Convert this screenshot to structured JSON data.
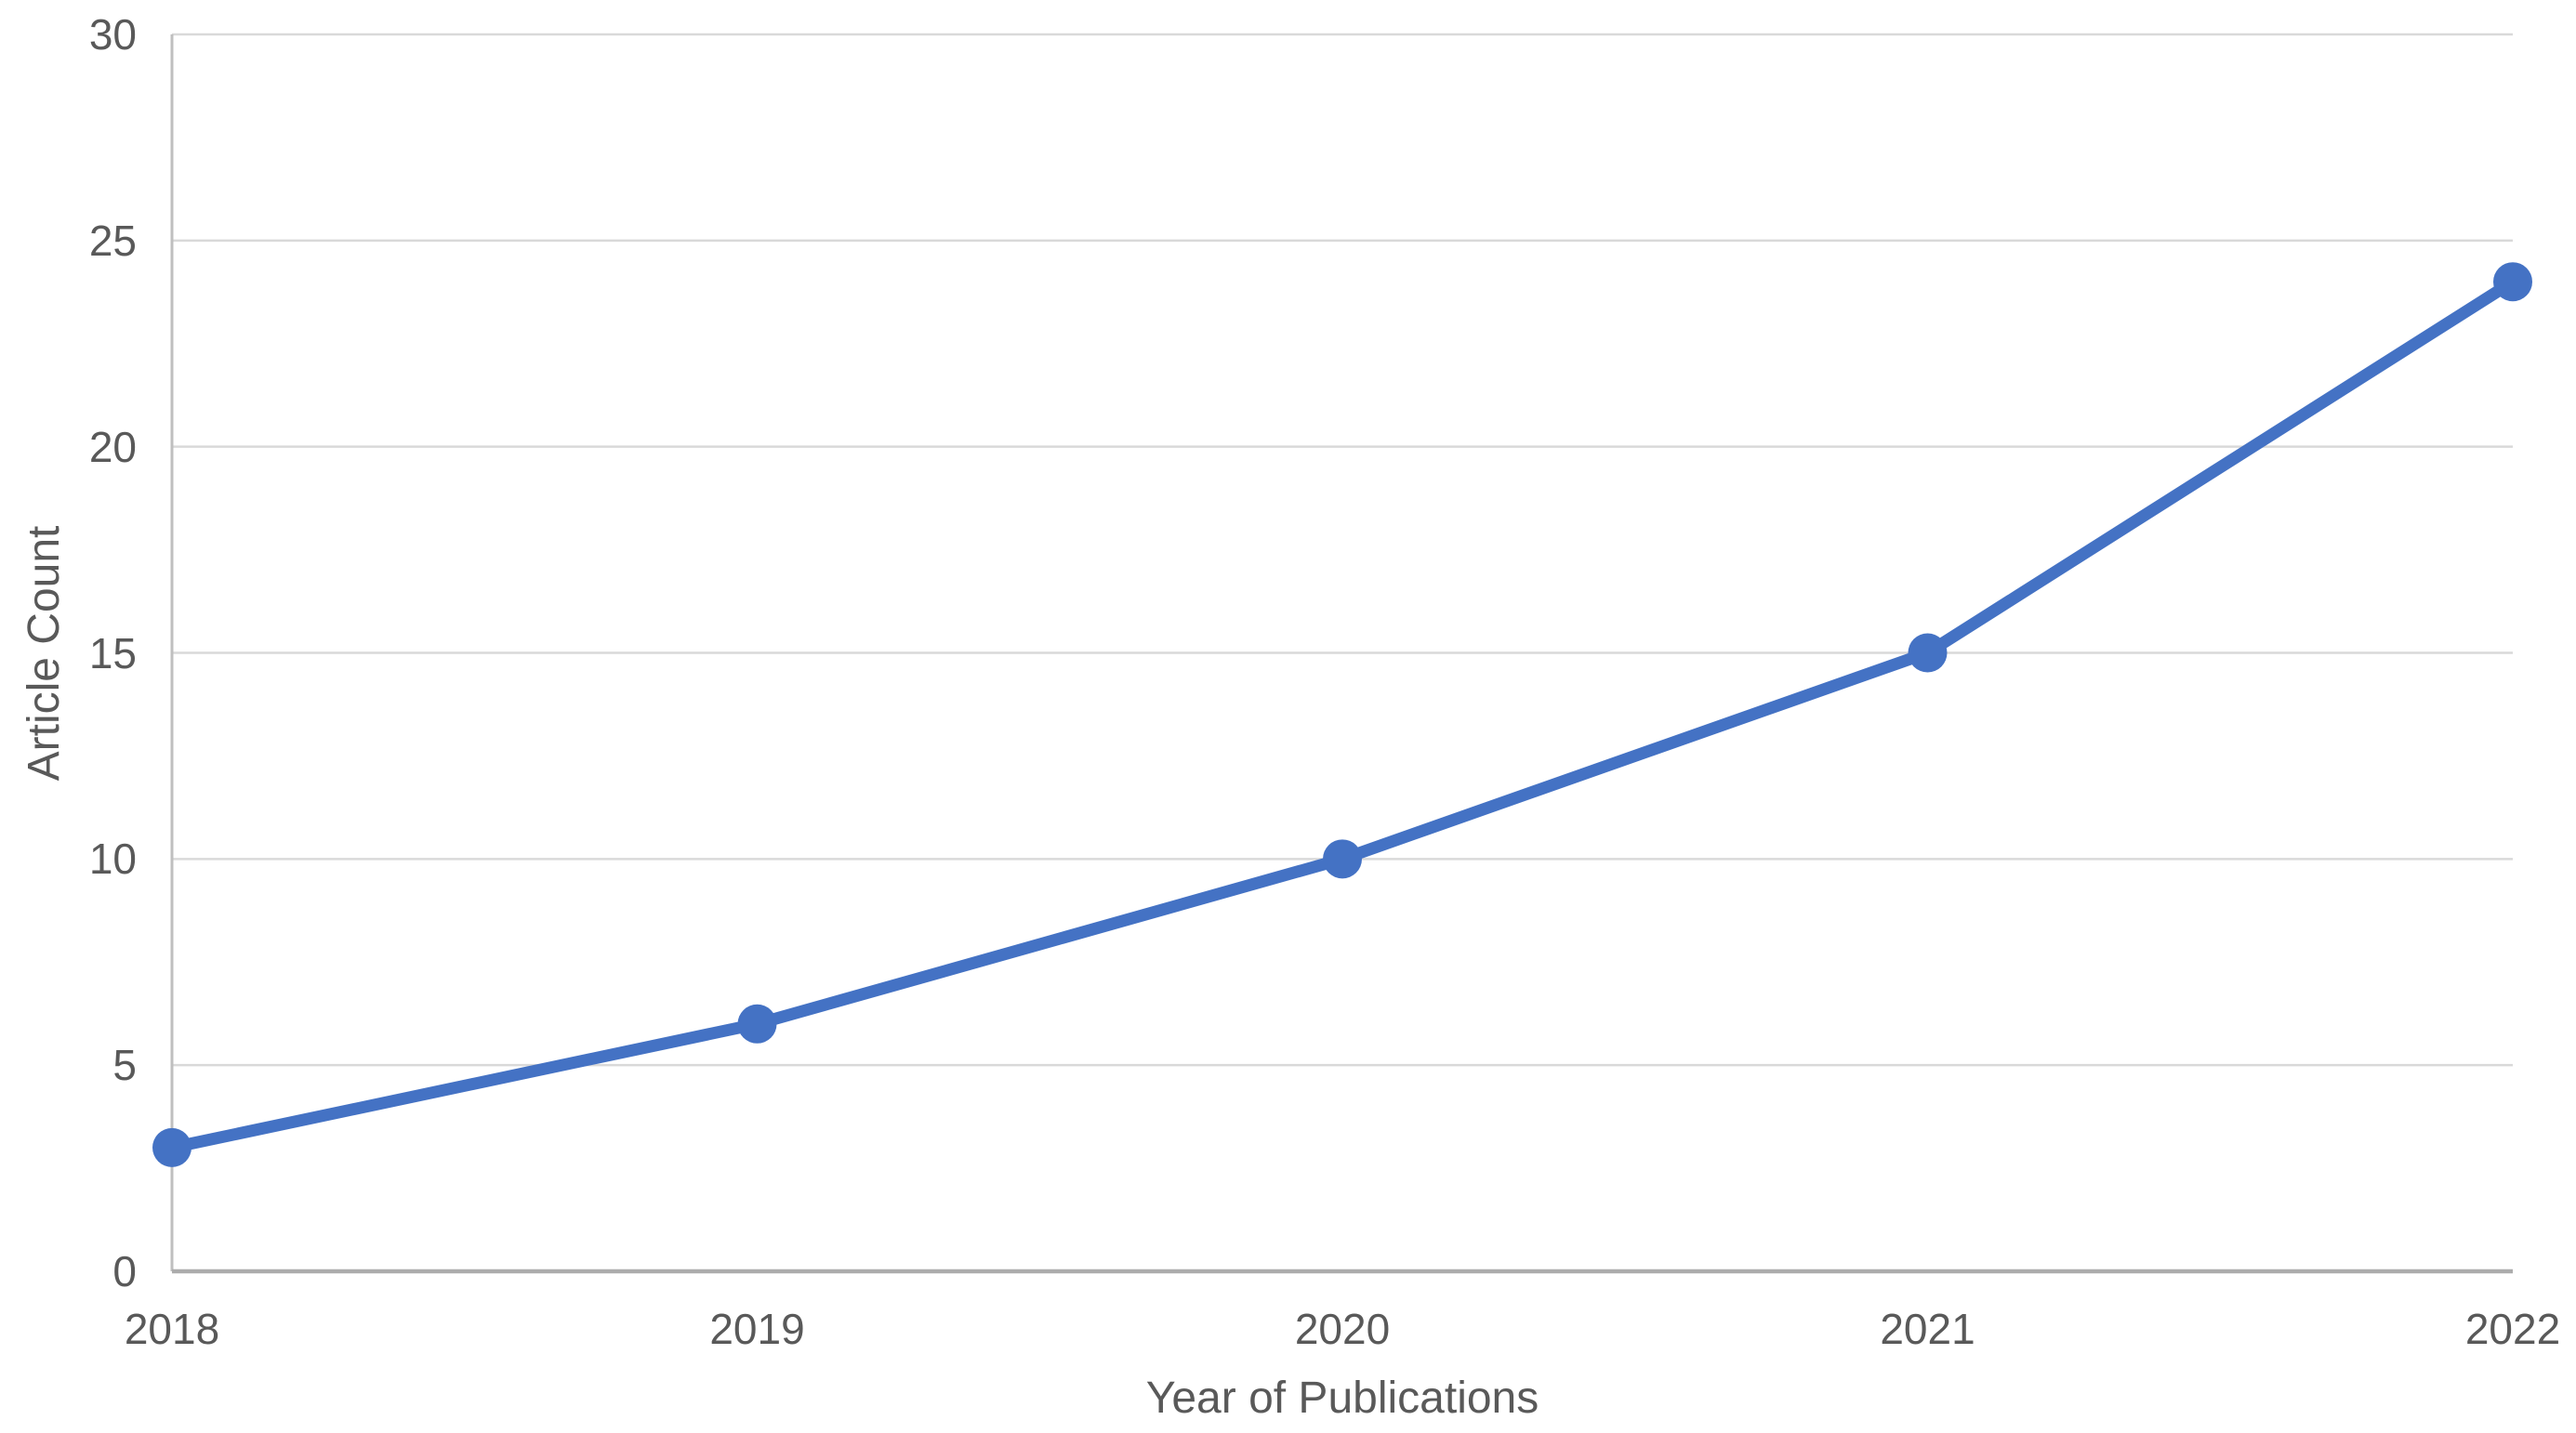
{
  "chart_data": {
    "type": "line",
    "title": "",
    "categories": [
      "2018",
      "2019",
      "2020",
      "2021",
      "2022"
    ],
    "series": [
      {
        "name": "Article Count",
        "values": [
          3,
          6,
          10,
          15,
          24
        ]
      }
    ],
    "xlabel": "Year of Publications",
    "ylabel": "Article Count",
    "ylim": [
      0,
      30
    ],
    "ytick_step": 5,
    "yticks": [
      0,
      5,
      10,
      15,
      20,
      25,
      30
    ],
    "grid": "horizontal",
    "legend_position": "none",
    "colors": {
      "line": "#4472C4",
      "marker": "#4472C4",
      "gridline": "#D9D9D9",
      "axis_line": "#BFBFBF",
      "x_axis_line": "#ACACAC",
      "tick_text": "#595959",
      "title_text": "#595959",
      "background": "#FFFFFF"
    }
  }
}
